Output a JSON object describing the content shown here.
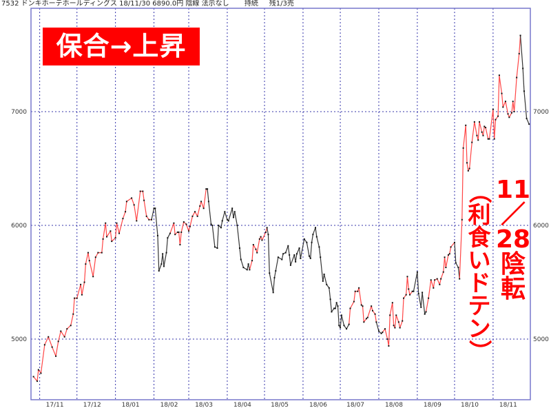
{
  "header": {
    "code": "7532",
    "name": "ドンキホーテホールディングス",
    "date": "18/11/30",
    "price": "6890.0円",
    "candle": "陰線",
    "display": "法示なし",
    "status": "持続",
    "position": "残1/3売"
  },
  "annotations": {
    "tag": "保合→上昇",
    "col1": [
      "11",
      "／",
      "28",
      "陰",
      "転"
    ],
    "col2": [
      "（",
      "利",
      "食",
      "い",
      "ド",
      "テ",
      "ン",
      "）"
    ]
  },
  "colors": {
    "up": "#ff4444",
    "down": "#333333",
    "grid": "#3333aa",
    "frame": "#7777cc",
    "annotation": "#ff0000"
  },
  "chart_data": {
    "type": "line",
    "title": "",
    "xlabel": "",
    "ylabel": "",
    "xlim": [
      "2017-10-25",
      "2018-12-01"
    ],
    "ylim": [
      4467,
      7909
    ],
    "grid": true,
    "yticks": [
      5000,
      6000,
      7000
    ],
    "yticks_both_sides": true,
    "xticks": [
      {
        "date": "2017-11-01",
        "label": "17/11"
      },
      {
        "date": "2017-12-01",
        "label": "17/12"
      },
      {
        "date": "2018-01-01",
        "label": "18/01"
      },
      {
        "date": "2018-02-01",
        "label": "18/02"
      },
      {
        "date": "2018-03-01",
        "label": "18/03"
      },
      {
        "date": "2018-04-01",
        "label": "18/04"
      },
      {
        "date": "2018-05-01",
        "label": "18/05"
      },
      {
        "date": "2018-06-01",
        "label": "18/06"
      },
      {
        "date": "2018-07-01",
        "label": "18/07"
      },
      {
        "date": "2018-08-01",
        "label": "18/08"
      },
      {
        "date": "2018-09-01",
        "label": "18/09"
      },
      {
        "date": "2018-10-01",
        "label": "18/10"
      },
      {
        "date": "2018-11-01",
        "label": "18/11"
      }
    ],
    "segment_color_key": {
      "r": "up",
      "k": "down"
    },
    "points": [
      [
        "2017-10-27",
        4670,
        "r"
      ],
      [
        "2017-10-30",
        4630,
        "r"
      ],
      [
        "2017-10-31",
        4730,
        "r"
      ],
      [
        "2017-11-02",
        4700,
        "r"
      ],
      [
        "2017-11-05",
        4950,
        "r"
      ],
      [
        "2017-11-08",
        5020,
        "r"
      ],
      [
        "2017-11-11",
        4930,
        "r"
      ],
      [
        "2017-11-14",
        4850,
        "r"
      ],
      [
        "2017-11-16",
        4980,
        "r"
      ],
      [
        "2017-11-18",
        5070,
        "r"
      ],
      [
        "2017-11-21",
        5020,
        "r"
      ],
      [
        "2017-11-23",
        5090,
        "r"
      ],
      [
        "2017-11-26",
        5120,
        "r"
      ],
      [
        "2017-11-28",
        5220,
        "r"
      ],
      [
        "2017-11-29",
        5360,
        "r"
      ],
      [
        "2017-12-01",
        5360,
        "r"
      ],
      [
        "2017-12-04",
        5480,
        "r"
      ],
      [
        "2017-12-05",
        5390,
        "r"
      ],
      [
        "2017-12-07",
        5500,
        "r"
      ],
      [
        "2017-12-08",
        5660,
        "r"
      ],
      [
        "2017-12-10",
        5760,
        "r"
      ],
      [
        "2017-12-11",
        5690,
        "r"
      ],
      [
        "2017-12-14",
        5550,
        "r"
      ],
      [
        "2017-12-16",
        5720,
        "r"
      ],
      [
        "2017-12-18",
        5760,
        "r"
      ],
      [
        "2017-12-21",
        5760,
        "r"
      ],
      [
        "2017-12-22",
        5880,
        "r"
      ],
      [
        "2017-12-24",
        6020,
        "r"
      ],
      [
        "2017-12-25",
        5900,
        "r"
      ],
      [
        "2017-12-28",
        5950,
        "r"
      ],
      [
        "2017-12-29",
        5860,
        "r"
      ],
      [
        "2018-01-01",
        5890,
        "r"
      ],
      [
        "2018-01-02",
        6020,
        "r"
      ],
      [
        "2018-01-04",
        5930,
        "r"
      ],
      [
        "2018-01-07",
        6060,
        "r"
      ],
      [
        "2018-01-09",
        6120,
        "r"
      ],
      [
        "2018-01-10",
        6210,
        "r"
      ],
      [
        "2018-01-14",
        6240,
        "r"
      ],
      [
        "2018-01-16",
        6180,
        "r"
      ],
      [
        "2018-01-18",
        6040,
        "r"
      ],
      [
        "2018-01-21",
        6300,
        "r"
      ],
      [
        "2018-01-23",
        6300,
        "r"
      ],
      [
        "2018-01-24",
        6220,
        "r"
      ],
      [
        "2018-01-26",
        6080,
        "r"
      ],
      [
        "2018-01-28",
        6050,
        "r"
      ],
      [
        "2018-01-30",
        6050,
        "r"
      ],
      [
        "2018-02-01",
        6150,
        "k"
      ],
      [
        "2018-02-02",
        6150,
        "k"
      ],
      [
        "2018-02-04",
        5910,
        "k"
      ],
      [
        "2018-02-05",
        5600,
        "k"
      ],
      [
        "2018-02-07",
        5660,
        "k"
      ],
      [
        "2018-02-08",
        5750,
        "k"
      ],
      [
        "2018-02-09",
        5640,
        "k"
      ],
      [
        "2018-02-11",
        5760,
        "k"
      ],
      [
        "2018-02-12",
        5890,
        "k"
      ],
      [
        "2018-02-14",
        5930,
        "k"
      ],
      [
        "2018-02-17",
        6020,
        "r"
      ],
      [
        "2018-02-18",
        5920,
        "r"
      ],
      [
        "2018-02-20",
        5940,
        "r"
      ],
      [
        "2018-02-21",
        5940,
        "r"
      ],
      [
        "2018-02-22",
        5830,
        "r"
      ],
      [
        "2018-02-23",
        5940,
        "r"
      ],
      [
        "2018-02-25",
        6030,
        "r"
      ],
      [
        "2018-02-27",
        6010,
        "r"
      ],
      [
        "2018-03-01",
        5950,
        "r"
      ],
      [
        "2018-03-02",
        5990,
        "r"
      ],
      [
        "2018-03-04",
        6080,
        "r"
      ],
      [
        "2018-03-06",
        6120,
        "r"
      ],
      [
        "2018-03-08",
        6080,
        "r"
      ],
      [
        "2018-03-10",
        6170,
        "r"
      ],
      [
        "2018-03-11",
        6210,
        "r"
      ],
      [
        "2018-03-13",
        6150,
        "r"
      ],
      [
        "2018-03-15",
        6320,
        "r"
      ],
      [
        "2018-03-16",
        6320,
        "r"
      ],
      [
        "2018-03-17",
        6210,
        "k"
      ],
      [
        "2018-03-19",
        6010,
        "k"
      ],
      [
        "2018-03-20",
        6000,
        "k"
      ],
      [
        "2018-03-22",
        5810,
        "k"
      ],
      [
        "2018-03-24",
        5800,
        "k"
      ],
      [
        "2018-03-25",
        6000,
        "k"
      ],
      [
        "2018-03-27",
        5980,
        "k"
      ],
      [
        "2018-03-28",
        6040,
        "k"
      ],
      [
        "2018-03-30",
        6120,
        "k"
      ],
      [
        "2018-04-01",
        6050,
        "k"
      ],
      [
        "2018-04-02",
        6040,
        "k"
      ],
      [
        "2018-04-05",
        6150,
        "k"
      ],
      [
        "2018-04-06",
        6070,
        "k"
      ],
      [
        "2018-04-07",
        6120,
        "k"
      ],
      [
        "2018-04-09",
        6000,
        "k"
      ],
      [
        "2018-04-11",
        5800,
        "k"
      ],
      [
        "2018-04-12",
        5700,
        "k"
      ],
      [
        "2018-04-14",
        5630,
        "k"
      ],
      [
        "2018-04-17",
        5610,
        "k"
      ],
      [
        "2018-04-18",
        5660,
        "k"
      ],
      [
        "2018-04-19",
        5610,
        "k"
      ],
      [
        "2018-04-21",
        5690,
        "r"
      ],
      [
        "2018-04-22",
        5830,
        "r"
      ],
      [
        "2018-04-24",
        5790,
        "r"
      ],
      [
        "2018-04-25",
        5760,
        "r"
      ],
      [
        "2018-04-27",
        5880,
        "r"
      ],
      [
        "2018-04-28",
        5900,
        "r"
      ],
      [
        "2018-04-29",
        5870,
        "r"
      ],
      [
        "2018-05-02",
        5940,
        "r"
      ],
      [
        "2018-05-03",
        5980,
        "r"
      ],
      [
        "2018-05-04",
        5920,
        "k"
      ],
      [
        "2018-05-05",
        5580,
        "k"
      ],
      [
        "2018-05-08",
        5410,
        "k"
      ],
      [
        "2018-05-09",
        5540,
        "k"
      ],
      [
        "2018-05-10",
        5600,
        "k"
      ],
      [
        "2018-05-12",
        5720,
        "k"
      ],
      [
        "2018-05-15",
        5700,
        "k"
      ],
      [
        "2018-05-16",
        5750,
        "k"
      ],
      [
        "2018-05-18",
        5760,
        "k"
      ],
      [
        "2018-05-20",
        5820,
        "k"
      ],
      [
        "2018-05-21",
        5740,
        "k"
      ],
      [
        "2018-05-22",
        5650,
        "k"
      ],
      [
        "2018-05-25",
        5740,
        "k"
      ],
      [
        "2018-05-26",
        5680,
        "k"
      ],
      [
        "2018-05-27",
        5750,
        "k"
      ],
      [
        "2018-05-29",
        5800,
        "k"
      ],
      [
        "2018-05-30",
        5710,
        "k"
      ],
      [
        "2018-06-02",
        5880,
        "k"
      ],
      [
        "2018-06-04",
        5850,
        "k"
      ],
      [
        "2018-06-06",
        5730,
        "k"
      ],
      [
        "2018-06-07",
        5710,
        "k"
      ],
      [
        "2018-06-08",
        5850,
        "k"
      ],
      [
        "2018-06-09",
        5920,
        "k"
      ],
      [
        "2018-06-11",
        5980,
        "k"
      ],
      [
        "2018-06-12",
        5900,
        "k"
      ],
      [
        "2018-06-14",
        5810,
        "k"
      ],
      [
        "2018-06-15",
        5720,
        "k"
      ],
      [
        "2018-06-17",
        5510,
        "k"
      ],
      [
        "2018-06-18",
        5570,
        "k"
      ],
      [
        "2018-06-20",
        5480,
        "k"
      ],
      [
        "2018-06-22",
        5450,
        "k"
      ],
      [
        "2018-06-23",
        5350,
        "k"
      ],
      [
        "2018-06-24",
        5240,
        "k"
      ],
      [
        "2018-06-26",
        5270,
        "k"
      ],
      [
        "2018-06-27",
        5270,
        "k"
      ],
      [
        "2018-06-28",
        5320,
        "k"
      ],
      [
        "2018-06-29",
        5290,
        "k"
      ],
      [
        "2018-06-30",
        5120,
        "k"
      ],
      [
        "2018-07-01",
        5100,
        "k"
      ],
      [
        "2018-07-02",
        5210,
        "k"
      ],
      [
        "2018-07-04",
        5120,
        "k"
      ],
      [
        "2018-07-06",
        5090,
        "k"
      ],
      [
        "2018-07-08",
        5130,
        "k"
      ],
      [
        "2018-07-09",
        5270,
        "r"
      ],
      [
        "2018-07-12",
        5330,
        "r"
      ],
      [
        "2018-07-13",
        5420,
        "r"
      ],
      [
        "2018-07-15",
        5420,
        "r"
      ],
      [
        "2018-07-16",
        5450,
        "r"
      ],
      [
        "2018-07-18",
        5300,
        "r"
      ],
      [
        "2018-07-19",
        5290,
        "r"
      ],
      [
        "2018-07-20",
        5150,
        "r"
      ],
      [
        "2018-07-22",
        5180,
        "r"
      ],
      [
        "2018-07-23",
        5190,
        "r"
      ],
      [
        "2018-07-26",
        5290,
        "r"
      ],
      [
        "2018-07-27",
        5250,
        "r"
      ],
      [
        "2018-07-29",
        5220,
        "r"
      ],
      [
        "2018-07-30",
        5150,
        "r"
      ],
      [
        "2018-08-01",
        5070,
        "k"
      ],
      [
        "2018-08-03",
        5050,
        "k"
      ],
      [
        "2018-08-04",
        5060,
        "k"
      ],
      [
        "2018-08-06",
        5090,
        "r"
      ],
      [
        "2018-08-08",
        5000,
        "r"
      ],
      [
        "2018-08-09",
        4940,
        "r"
      ],
      [
        "2018-08-10",
        5210,
        "r"
      ],
      [
        "2018-08-12",
        5320,
        "r"
      ],
      [
        "2018-08-13",
        5120,
        "r"
      ],
      [
        "2018-08-14",
        5100,
        "r"
      ],
      [
        "2018-08-15",
        5210,
        "r"
      ],
      [
        "2018-08-17",
        5150,
        "r"
      ],
      [
        "2018-08-18",
        5100,
        "r"
      ],
      [
        "2018-08-20",
        5160,
        "r"
      ],
      [
        "2018-08-21",
        5360,
        "r"
      ],
      [
        "2018-08-23",
        5390,
        "r"
      ],
      [
        "2018-08-24",
        5550,
        "r"
      ],
      [
        "2018-08-25",
        5440,
        "r"
      ],
      [
        "2018-08-26",
        5390,
        "r"
      ],
      [
        "2018-08-28",
        5420,
        "r"
      ],
      [
        "2018-08-29",
        5420,
        "r"
      ],
      [
        "2018-09-01",
        5590,
        "k"
      ],
      [
        "2018-09-02",
        5400,
        "k"
      ],
      [
        "2018-09-04",
        5280,
        "k"
      ],
      [
        "2018-09-05",
        5410,
        "k"
      ],
      [
        "2018-09-07",
        5220,
        "k"
      ],
      [
        "2018-09-08",
        5240,
        "k"
      ],
      [
        "2018-09-10",
        5360,
        "r"
      ],
      [
        "2018-09-12",
        5520,
        "r"
      ],
      [
        "2018-09-14",
        5450,
        "r"
      ],
      [
        "2018-09-15",
        5520,
        "r"
      ],
      [
        "2018-09-17",
        5530,
        "r"
      ],
      [
        "2018-09-19",
        5480,
        "r"
      ],
      [
        "2018-09-20",
        5530,
        "r"
      ],
      [
        "2018-09-22",
        5590,
        "r"
      ],
      [
        "2018-09-23",
        5720,
        "r"
      ],
      [
        "2018-09-24",
        5630,
        "r"
      ],
      [
        "2018-09-26",
        5740,
        "r"
      ],
      [
        "2018-09-27",
        5750,
        "r"
      ],
      [
        "2018-09-28",
        5810,
        "r"
      ],
      [
        "2018-10-01",
        5850,
        "r"
      ],
      [
        "2018-10-02",
        5670,
        "k"
      ],
      [
        "2018-10-04",
        5630,
        "k"
      ],
      [
        "2018-10-05",
        5530,
        "k"
      ],
      [
        "2018-10-07",
        6050,
        "r"
      ],
      [
        "2018-10-08",
        6680,
        "r"
      ],
      [
        "2018-10-10",
        6880,
        "r"
      ],
      [
        "2018-10-11",
        6550,
        "r"
      ],
      [
        "2018-10-12",
        6480,
        "r"
      ],
      [
        "2018-10-13",
        6500,
        "r"
      ],
      [
        "2018-10-15",
        6730,
        "r"
      ],
      [
        "2018-10-17",
        6910,
        "r"
      ],
      [
        "2018-10-19",
        6790,
        "r"
      ],
      [
        "2018-10-20",
        6750,
        "r"
      ],
      [
        "2018-10-21",
        6910,
        "r"
      ],
      [
        "2018-10-23",
        6820,
        "r"
      ],
      [
        "2018-10-24",
        6790,
        "r"
      ],
      [
        "2018-10-25",
        6870,
        "r"
      ],
      [
        "2018-10-26",
        6860,
        "r"
      ],
      [
        "2018-10-28",
        6760,
        "r"
      ],
      [
        "2018-10-29",
        6760,
        "r"
      ],
      [
        "2018-11-01",
        7020,
        "r"
      ],
      [
        "2018-11-02",
        6760,
        "r"
      ],
      [
        "2018-11-03",
        6930,
        "r"
      ],
      [
        "2018-11-05",
        6960,
        "r"
      ],
      [
        "2018-11-06",
        7320,
        "r"
      ],
      [
        "2018-11-08",
        7160,
        "r"
      ],
      [
        "2018-11-09",
        7040,
        "r"
      ],
      [
        "2018-11-11",
        7090,
        "r"
      ],
      [
        "2018-11-13",
        6980,
        "r"
      ],
      [
        "2018-11-14",
        6950,
        "r"
      ],
      [
        "2018-11-16",
        6990,
        "r"
      ],
      [
        "2018-11-17",
        7090,
        "r"
      ],
      [
        "2018-11-18",
        7000,
        "r"
      ],
      [
        "2018-11-20",
        7300,
        "r"
      ],
      [
        "2018-11-22",
        7510,
        "r"
      ],
      [
        "2018-11-23",
        7670,
        "r"
      ],
      [
        "2018-11-25",
        7380,
        "k"
      ],
      [
        "2018-11-26",
        7180,
        "k"
      ],
      [
        "2018-11-28",
        6940,
        "k"
      ],
      [
        "2018-11-30",
        6890,
        "k"
      ]
    ]
  }
}
